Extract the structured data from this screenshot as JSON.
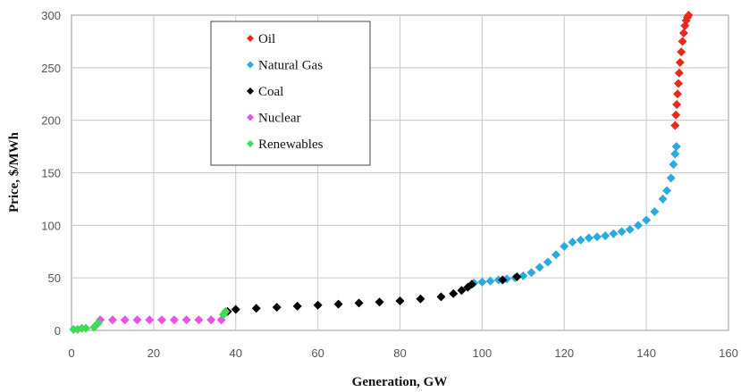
{
  "chart_data": {
    "type": "scatter",
    "title": "",
    "xlabel": "Generation, GW",
    "ylabel": "Price, $/MWh",
    "xlim": [
      0,
      160
    ],
    "ylim": [
      0,
      300
    ],
    "x_ticks": [
      0,
      20,
      40,
      60,
      80,
      100,
      120,
      140,
      160
    ],
    "y_ticks": [
      0,
      50,
      100,
      150,
      200,
      250,
      300
    ],
    "grid": true,
    "legend_position": "top-left-center",
    "series": [
      {
        "name": "Oil",
        "color": "#e8291b",
        "marker": "diamond",
        "points": [
          [
            147.0,
            195
          ],
          [
            147.2,
            205
          ],
          [
            147.4,
            215
          ],
          [
            147.6,
            225
          ],
          [
            147.8,
            235
          ],
          [
            148.0,
            245
          ],
          [
            148.2,
            255
          ],
          [
            148.5,
            265
          ],
          [
            148.8,
            275
          ],
          [
            149.1,
            283
          ],
          [
            149.4,
            290
          ],
          [
            149.7,
            295
          ],
          [
            150.0,
            298
          ],
          [
            150.3,
            300
          ]
        ]
      },
      {
        "name": "Natural Gas",
        "color": "#29abe2",
        "marker": "diamond",
        "points": [
          [
            98.0,
            45
          ],
          [
            100.0,
            46
          ],
          [
            102.0,
            47
          ],
          [
            104.0,
            48
          ],
          [
            106.0,
            49
          ],
          [
            108.0,
            50
          ],
          [
            110.0,
            52
          ],
          [
            112.0,
            55
          ],
          [
            114.0,
            60
          ],
          [
            116.0,
            65
          ],
          [
            118.0,
            72
          ],
          [
            120.0,
            80
          ],
          [
            122.0,
            84
          ],
          [
            124.0,
            86
          ],
          [
            126.0,
            88
          ],
          [
            128.0,
            89
          ],
          [
            130.0,
            90
          ],
          [
            132.0,
            92
          ],
          [
            134.0,
            94
          ],
          [
            136.0,
            96
          ],
          [
            138.0,
            100
          ],
          [
            140.0,
            105
          ],
          [
            142.0,
            113
          ],
          [
            144.0,
            125
          ],
          [
            145.0,
            133
          ],
          [
            146.0,
            145
          ],
          [
            146.6,
            158
          ],
          [
            147.0,
            168
          ],
          [
            147.3,
            175
          ]
        ]
      },
      {
        "name": "Coal",
        "color": "#000000",
        "marker": "diamond",
        "points": [
          [
            38.0,
            18
          ],
          [
            40.0,
            20
          ],
          [
            45.0,
            21
          ],
          [
            50.0,
            22
          ],
          [
            55.0,
            23
          ],
          [
            60.0,
            24
          ],
          [
            65.0,
            25
          ],
          [
            70.0,
            26
          ],
          [
            75.0,
            27
          ],
          [
            80.0,
            28
          ],
          [
            85.0,
            30
          ],
          [
            90.0,
            32
          ],
          [
            93.0,
            35
          ],
          [
            95.0,
            38
          ],
          [
            96.5,
            41
          ],
          [
            97.5,
            44
          ],
          [
            105.0,
            48
          ],
          [
            108.5,
            51
          ]
        ]
      },
      {
        "name": "Nuclear",
        "color": "#ee4fe6",
        "marker": "diamond",
        "points": [
          [
            7.0,
            10
          ],
          [
            10.0,
            10
          ],
          [
            13.0,
            10
          ],
          [
            16.0,
            10
          ],
          [
            19.0,
            10
          ],
          [
            22.0,
            10
          ],
          [
            25.0,
            10
          ],
          [
            28.0,
            10
          ],
          [
            31.0,
            10
          ],
          [
            34.0,
            10
          ],
          [
            36.5,
            10
          ]
        ]
      },
      {
        "name": "Renewables",
        "color": "#3fd957",
        "marker": "diamond",
        "points": [
          [
            0.5,
            1
          ],
          [
            1.5,
            1
          ],
          [
            2.5,
            2
          ],
          [
            3.5,
            2
          ],
          [
            5.5,
            3
          ],
          [
            6.0,
            5
          ],
          [
            6.5,
            7
          ],
          [
            37.0,
            15
          ],
          [
            37.5,
            18
          ]
        ]
      }
    ]
  }
}
